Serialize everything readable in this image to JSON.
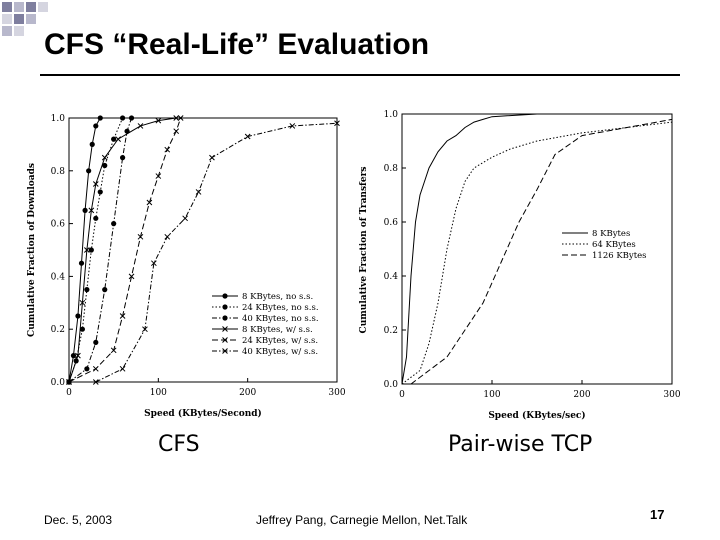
{
  "slide": {
    "title": "CFS “Real-Life” Evaluation",
    "caption_left": "CFS",
    "caption_right": "Pair-wise TCP",
    "footer_date": "Dec. 5, 2003",
    "footer_center": "Jeffrey Pang, Carnegie Mellon, Net.Talk",
    "page_number": "17",
    "decoration_color": "#7f7f9f"
  },
  "chart_data": [
    {
      "type": "line",
      "xlabel": "Speed (KBytes/Second)",
      "ylabel": "Cumulative Fraction of Downloads",
      "xlim": [
        0,
        300
      ],
      "ylim": [
        0,
        1.0
      ],
      "x_ticks": [
        "0",
        "100",
        "200",
        "300"
      ],
      "y_ticks": [
        "0.0",
        "0.2",
        "0.4",
        "0.6",
        "0.8",
        "1.0"
      ],
      "legend_position": "bottom-right",
      "series": [
        {
          "name": "8 KBytes, no s.s.",
          "marker": "dot",
          "dash": "solid",
          "x": [
            0,
            5,
            10,
            14,
            18,
            22,
            26,
            30,
            35
          ],
          "y": [
            0,
            0.1,
            0.25,
            0.45,
            0.65,
            0.8,
            0.9,
            0.97,
            1.0
          ]
        },
        {
          "name": "24 KBytes, no s.s.",
          "marker": "dot",
          "dash": "dotted",
          "x": [
            0,
            8,
            15,
            20,
            25,
            30,
            35,
            40,
            50,
            60
          ],
          "y": [
            0,
            0.08,
            0.2,
            0.35,
            0.5,
            0.62,
            0.72,
            0.82,
            0.92,
            1.0
          ]
        },
        {
          "name": "40 KBytes, no s.s.",
          "marker": "dot",
          "dash": "dashdot",
          "x": [
            0,
            20,
            30,
            40,
            50,
            60,
            65,
            70
          ],
          "y": [
            0,
            0.05,
            0.15,
            0.35,
            0.6,
            0.85,
            0.95,
            1.0
          ]
        },
        {
          "name": "8 KBytes, w/ s.s.",
          "marker": "x",
          "dash": "solid",
          "x": [
            0,
            10,
            15,
            20,
            25,
            30,
            40,
            55,
            80,
            100,
            120
          ],
          "y": [
            0,
            0.1,
            0.3,
            0.5,
            0.65,
            0.75,
            0.85,
            0.92,
            0.97,
            0.99,
            1.0
          ]
        },
        {
          "name": "24 KBytes, w/ s.s.",
          "marker": "x",
          "dash": "dashed",
          "x": [
            0,
            30,
            50,
            60,
            70,
            80,
            90,
            100,
            110,
            120,
            125
          ],
          "y": [
            0,
            0.05,
            0.12,
            0.25,
            0.4,
            0.55,
            0.68,
            0.78,
            0.88,
            0.95,
            1.0
          ]
        },
        {
          "name": "40 KBytes, w/ s.s.",
          "marker": "x",
          "dash": "dashdot",
          "x": [
            30,
            60,
            85,
            95,
            110,
            130,
            145,
            160,
            200,
            250,
            300
          ],
          "y": [
            0,
            0.05,
            0.2,
            0.45,
            0.55,
            0.62,
            0.72,
            0.85,
            0.93,
            0.97,
            0.98
          ]
        }
      ]
    },
    {
      "type": "line",
      "xlabel": "Speed (KBytes/sec)",
      "ylabel": "Cumulative Fraction of Transfers",
      "xlim": [
        0,
        300
      ],
      "ylim": [
        0,
        1.0
      ],
      "x_ticks": [
        "0",
        "100",
        "200",
        "300"
      ],
      "y_ticks": [
        "0.0",
        "0.2",
        "0.4",
        "0.6",
        "0.8",
        "1.0"
      ],
      "legend_position": "right-middle",
      "series": [
        {
          "name": "8 KBytes",
          "dash": "solid",
          "x": [
            0,
            5,
            10,
            15,
            20,
            25,
            30,
            40,
            50,
            60,
            70,
            80,
            90,
            100,
            150,
            300
          ],
          "y": [
            0,
            0.1,
            0.4,
            0.6,
            0.7,
            0.75,
            0.8,
            0.86,
            0.9,
            0.92,
            0.95,
            0.97,
            0.98,
            0.99,
            1.0,
            1.0
          ]
        },
        {
          "name": "64 KBytes",
          "dash": "dotted",
          "x": [
            0,
            20,
            30,
            40,
            50,
            60,
            70,
            80,
            90,
            100,
            120,
            150,
            200,
            250,
            300
          ],
          "y": [
            0,
            0.05,
            0.15,
            0.3,
            0.5,
            0.65,
            0.75,
            0.8,
            0.82,
            0.84,
            0.87,
            0.9,
            0.93,
            0.95,
            0.97
          ]
        },
        {
          "name": "1126 KBytes",
          "dash": "dashed",
          "x": [
            10,
            30,
            50,
            70,
            90,
            110,
            130,
            150,
            170,
            200,
            250,
            300
          ],
          "y": [
            0,
            0.05,
            0.1,
            0.2,
            0.3,
            0.45,
            0.6,
            0.72,
            0.85,
            0.92,
            0.95,
            0.98
          ]
        }
      ]
    }
  ]
}
